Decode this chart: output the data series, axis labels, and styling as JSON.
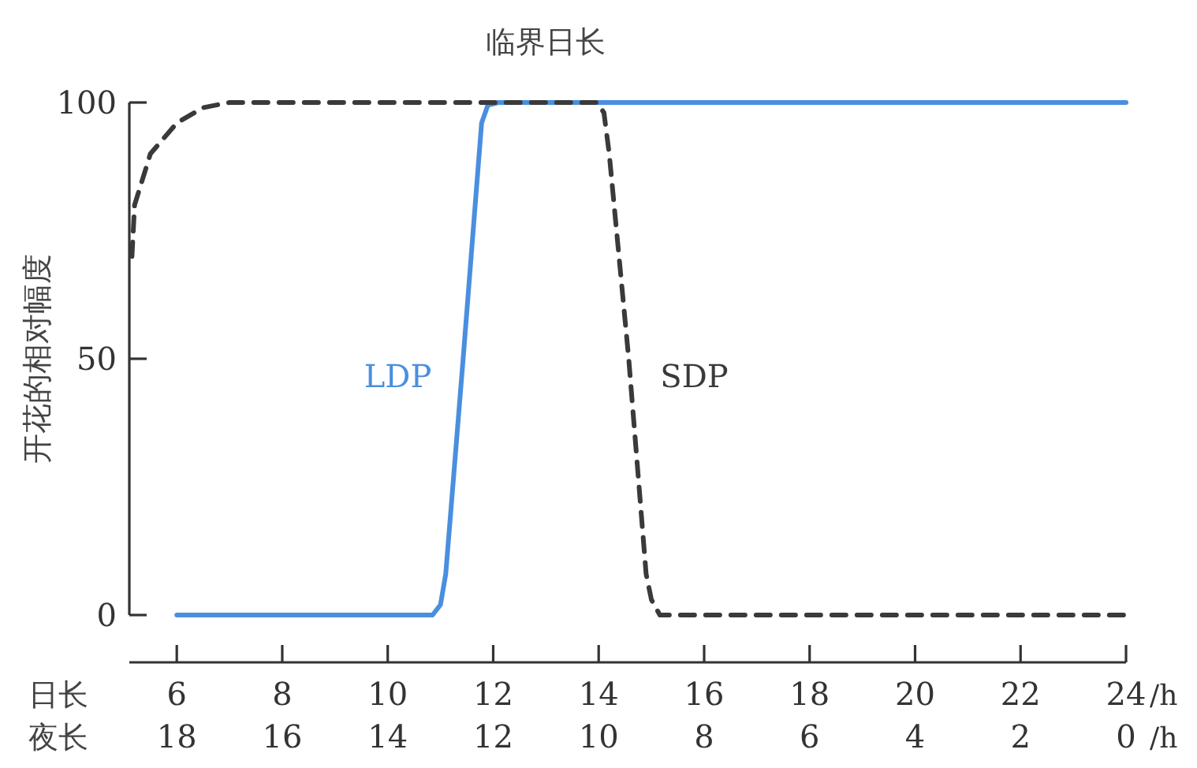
{
  "chart_data": {
    "type": "line",
    "xlabel": "日长",
    "x2label": "夜长",
    "ylabel": "开花的相对幅度",
    "xlim": [
      5.1,
      24
    ],
    "xticks": [
      6,
      8,
      10,
      12,
      14,
      16,
      18,
      20,
      22,
      24
    ],
    "x2lim": [
      18.9,
      0
    ],
    "x2ticks": [
      18,
      16,
      14,
      12,
      10,
      8,
      6,
      4,
      2,
      0
    ],
    "ylim": [
      0,
      100
    ],
    "yticks": [
      0,
      50,
      100
    ],
    "annotations": [
      {
        "text": "临界日长",
        "x": 13,
        "y": 100
      },
      "/h",
      "/h"
    ],
    "series": [
      {
        "name": "LDP",
        "color": "#4a8fdf",
        "line_style": "solid",
        "x": [
          6,
          10.85,
          11.0,
          11.1,
          11.43,
          11.78,
          11.9,
          12.1,
          24
        ],
        "values": [
          0,
          0,
          2,
          8,
          50,
          96,
          99.5,
          100,
          100
        ]
      },
      {
        "name": "SDP",
        "color": "#3a3a3a",
        "line_style": "dashed",
        "x": [
          5.15,
          5.2,
          5.5,
          6,
          6.5,
          7,
          13.97,
          14.1,
          14.2,
          14.57,
          14.9,
          15.0,
          15.16,
          24
        ],
        "values": [
          70,
          80,
          90,
          96,
          99,
          100,
          100,
          98,
          90,
          50,
          8,
          3,
          0,
          0
        ]
      }
    ]
  }
}
